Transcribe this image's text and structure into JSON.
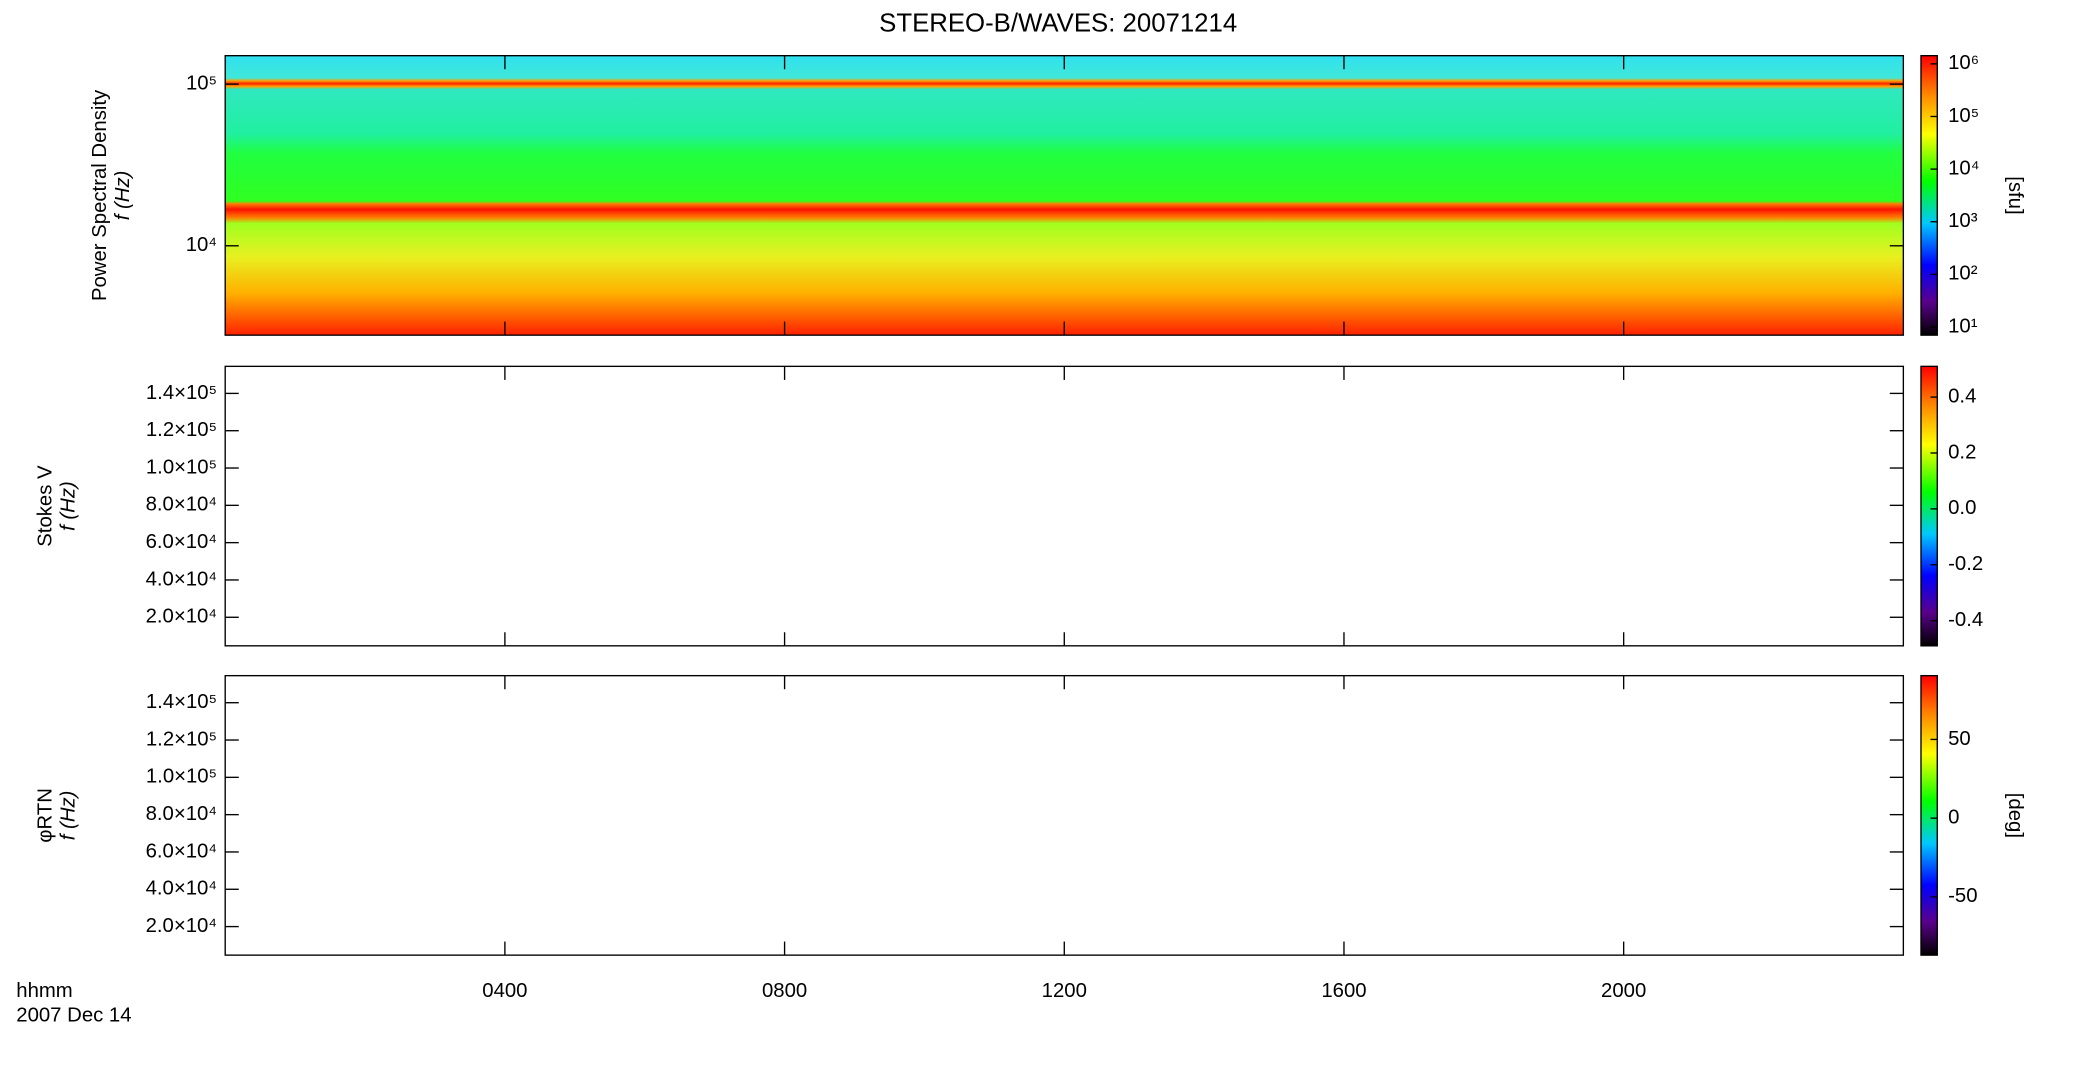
{
  "chart_data": [
    {
      "type": "heatmap",
      "title": "STEREO-B/WAVES: 20071214",
      "ylabel": [
        "Power Spectral Density",
        "f (Hz)"
      ],
      "ylim": [
        2800,
        150000
      ],
      "log_y": true,
      "yticks": [
        {
          "value": 10000,
          "label": "10⁴"
        },
        {
          "value": 100000,
          "label": "10⁵"
        }
      ],
      "clim": [
        7,
        1430000
      ],
      "log_c": true,
      "cticks": [
        {
          "value": 10,
          "label": "10¹"
        },
        {
          "value": 100,
          "label": "10²"
        },
        {
          "value": 1000,
          "label": "10³"
        },
        {
          "value": 10000,
          "label": "10⁴"
        },
        {
          "value": 100000,
          "label": "10⁵"
        },
        {
          "value": 1000000,
          "label": "10⁶"
        }
      ],
      "clabel": "[sfu]",
      "xlim": [
        0,
        24
      ]
    },
    {
      "type": "heatmap",
      "ylabel": [
        "Stokes V",
        "f (Hz)"
      ],
      "ylim": [
        4700,
        154500
      ],
      "log_y": false,
      "yticks": [
        {
          "value": 20000,
          "label": "2.0×10⁴"
        },
        {
          "value": 40000,
          "label": "4.0×10⁴"
        },
        {
          "value": 60000,
          "label": "6.0×10⁴"
        },
        {
          "value": 80000,
          "label": "8.0×10⁴"
        },
        {
          "value": 100000,
          "label": "1.0×10⁵"
        },
        {
          "value": 120000,
          "label": "1.2×10⁵"
        },
        {
          "value": 140000,
          "label": "1.4×10⁵"
        }
      ],
      "clim": [
        -0.49,
        0.51
      ],
      "log_c": false,
      "cticks": [
        -0.4,
        -0.2,
        {
          "value": 0,
          "label": "0.0"
        },
        0.2,
        0.4
      ],
      "xlim": [
        0,
        24
      ]
    },
    {
      "type": "heatmap",
      "ylabel": [
        "φRTN",
        "f (Hz)"
      ],
      "ylim": [
        4700,
        154500
      ],
      "log_y": false,
      "yticks": [
        {
          "value": 20000,
          "label": "2.0×10⁴"
        },
        {
          "value": 40000,
          "label": "4.0×10⁴"
        },
        {
          "value": 60000,
          "label": "6.0×10⁴"
        },
        {
          "value": 80000,
          "label": "8.0×10⁴"
        },
        {
          "value": 100000,
          "label": "1.0×10⁵"
        },
        {
          "value": 120000,
          "label": "1.2×10⁵"
        },
        {
          "value": 140000,
          "label": "1.4×10⁵"
        }
      ],
      "clim": [
        -87,
        90.5
      ],
      "log_c": false,
      "cticks": [
        -50,
        0,
        50
      ],
      "clabel": "[deg]",
      "xlim": [
        0,
        24
      ],
      "xticks": [
        {
          "value": 4,
          "label": "0400"
        },
        {
          "value": 8,
          "label": "0800"
        },
        {
          "value": 12,
          "label": "1200"
        },
        {
          "value": 16,
          "label": "1600"
        },
        {
          "value": 20,
          "label": "2000"
        }
      ],
      "xlabel": [
        "hhmm",
        "2007 Dec 14"
      ]
    }
  ]
}
